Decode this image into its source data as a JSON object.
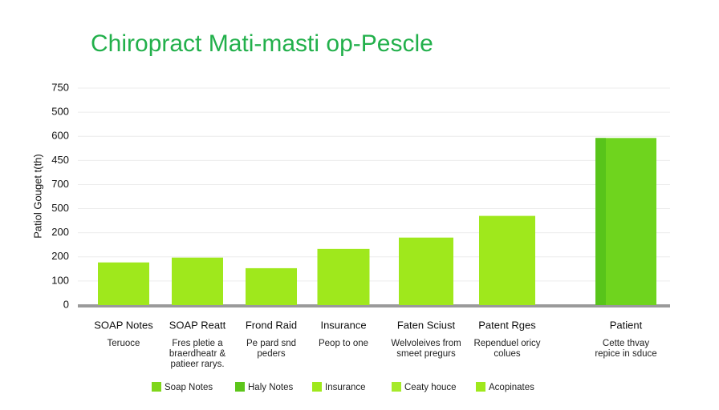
{
  "chart_data": {
    "type": "bar",
    "title": "Chiropract Mati-masti op-Pescle",
    "y_label": "Patiol Gouget t(th)",
    "categories": [
      "SOAP Notes",
      "SOAP Reatt",
      "Frond Raid",
      "Insurance",
      "Faten Sciust",
      "Patent Rges",
      "Patient"
    ],
    "sublabels": [
      [
        "Teruoce"
      ],
      [
        "Fres pletie a",
        "braerdheatr &",
        "patieer rarys."
      ],
      [
        "Pe pard snd",
        "peders"
      ],
      [
        "Peop to one"
      ],
      [
        "Welvoleives from",
        "smeet pregurs"
      ],
      [
        "Rependuel oricy",
        "colues"
      ],
      [
        "Cette thvay",
        "repice in sduce"
      ]
    ],
    "values": [
      1.77,
      1.97,
      1.53,
      2.33,
      2.8,
      3.7,
      6.93
    ],
    "colors": [
      "#9fe81c",
      "#9fe81c",
      "#9fe81c",
      "#9fe81c",
      "#9fe81c",
      "#9fe81c",
      "#6fd41e"
    ],
    "ylim": [
      0,
      9
    ],
    "yticks": [
      {
        "value": 0,
        "label": "0"
      },
      {
        "value": 1,
        "label": "100"
      },
      {
        "value": 2,
        "label": "200"
      },
      {
        "value": 3,
        "label": "200"
      },
      {
        "value": 4,
        "label": "500"
      },
      {
        "value": 5,
        "label": "700"
      },
      {
        "value": 6,
        "label": "450"
      },
      {
        "value": 7,
        "label": "600"
      },
      {
        "value": 8,
        "label": "500"
      },
      {
        "value": 9,
        "label": "750"
      }
    ],
    "grid": true,
    "legend": [
      {
        "name": "Soap Notes",
        "color": "#7fd61a"
      },
      {
        "name": "Haly Notes",
        "color": "#5cc51a"
      },
      {
        "name": "Insurance",
        "color": "#9fe81c"
      },
      {
        "name": "Ceaty houce",
        "color": "#a6ea2a"
      },
      {
        "name": "Acopinates",
        "color": "#9fe81c"
      }
    ]
  }
}
